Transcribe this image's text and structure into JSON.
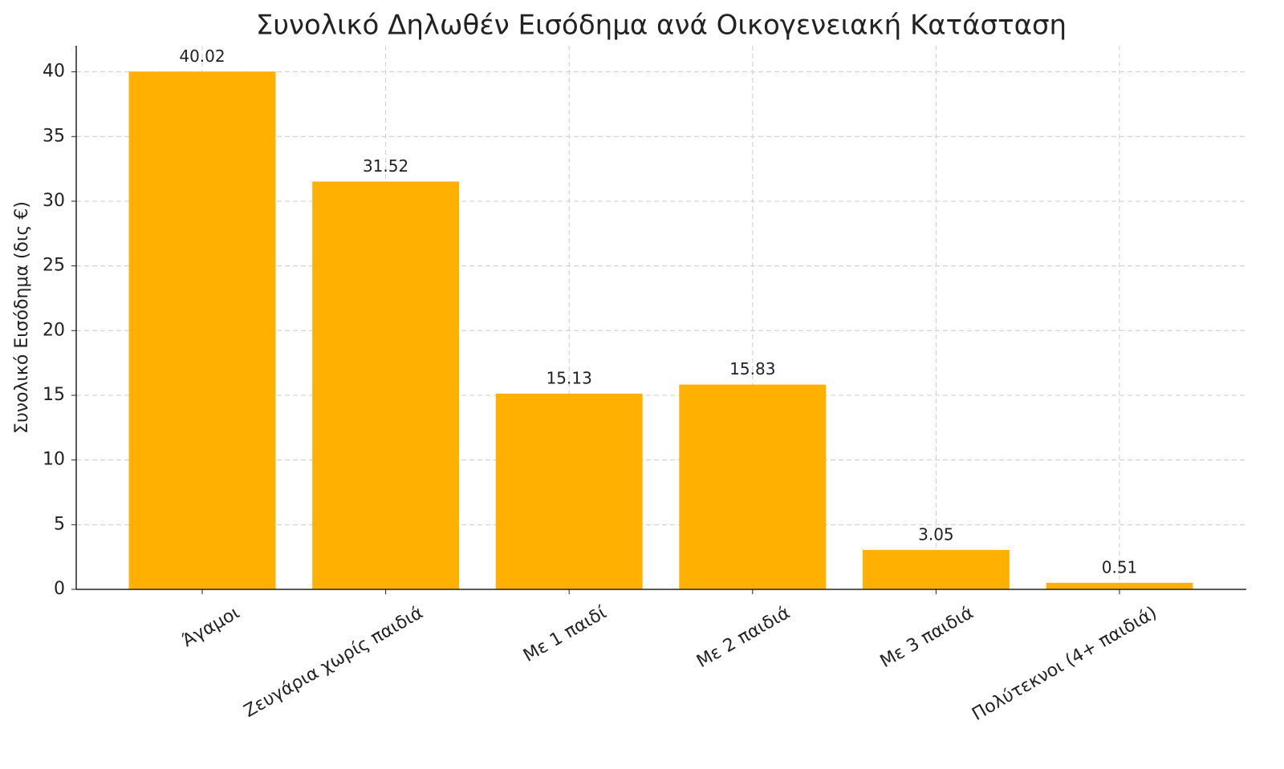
{
  "chart_data": {
    "type": "bar",
    "title": "Συνολικό Δηλωθέν Εισόδημα ανά Οικογενειακή Κατάσταση",
    "y_label": "Συνολικό Εισόδημα (δις €)",
    "categories": [
      "Άγαμοι",
      "Ζευγάρια χωρίς παιδιά",
      "Με 1 παιδί",
      "Με 2 παιδιά",
      "Με 3 παιδιά",
      "Πολύτεκνοι (4+ παιδιά)"
    ],
    "values": [
      40.02,
      31.52,
      15.13,
      15.83,
      3.05,
      0.51
    ],
    "color": "#ffb000",
    "ylim": [
      0,
      42.02
    ],
    "yticks": [
      0,
      5,
      10,
      15,
      20,
      25,
      30,
      35,
      40
    ],
    "grid": true
  }
}
